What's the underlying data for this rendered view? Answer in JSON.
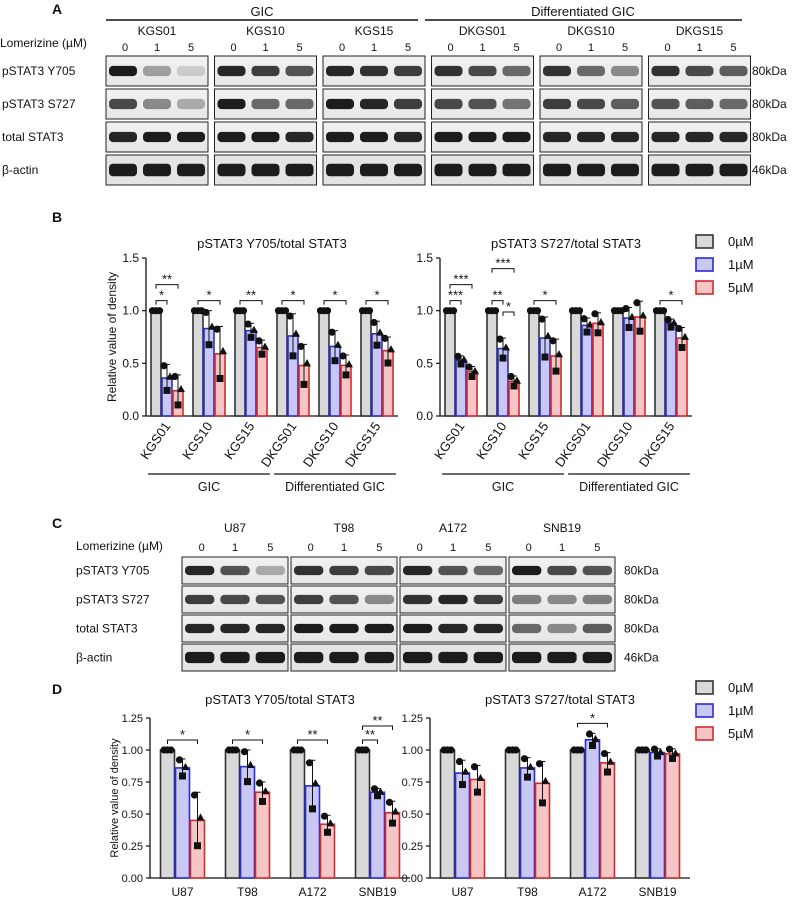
{
  "panel_labels": [
    "A",
    "B",
    "C",
    "D"
  ],
  "panel_a": {
    "groups": [
      "GIC",
      "Differentiated GIC"
    ],
    "treatment_label": "Lomerizine (µM)",
    "cell_lines": [
      "KGS01",
      "KGS10",
      "KGS15",
      "DKGS01",
      "DKGS10",
      "DKGS15"
    ],
    "doses": [
      "0",
      "1",
      "5"
    ],
    "rows": [
      {
        "label": "pSTAT3 Y705",
        "size": "80kDa"
      },
      {
        "label": "pSTAT3 S727",
        "size": "80kDa"
      },
      {
        "label": "total STAT3",
        "size": "80kDa"
      },
      {
        "label": "β-actin",
        "size": "46kDa"
      }
    ]
  },
  "panel_c": {
    "treatment_label": "Lomerizine (µM)",
    "cell_lines": [
      "U87",
      "T98",
      "A172",
      "SNB19"
    ],
    "doses": [
      "0",
      "1",
      "5"
    ],
    "rows": [
      {
        "label": "pSTAT3 Y705",
        "size": "80kDa"
      },
      {
        "label": "pSTAT3 S727",
        "size": "80kDa"
      },
      {
        "label": "total STAT3",
        "size": "80kDa"
      },
      {
        "label": "β-actin",
        "size": "46kDa"
      }
    ]
  },
  "legend": {
    "entries": [
      {
        "label": "0µM",
        "fill": "#d9d9d9",
        "stroke": "#333333"
      },
      {
        "label": "1µM",
        "fill": "#c8c8f2",
        "stroke": "#2b2bd6"
      },
      {
        "label": "5µM",
        "fill": "#f6c6c6",
        "stroke": "#d42a2a"
      }
    ]
  },
  "chart_data": [
    {
      "type": "bar",
      "title": "pSTAT3 Y705/total STAT3",
      "ylabel": "Relative value of density",
      "ylim": [
        0,
        1.5
      ],
      "yticks": [
        "0.0",
        "0.5",
        "1.0",
        "1.5"
      ],
      "categories": [
        "KGS01",
        "KGS10",
        "KGS15",
        "DKGS01",
        "DKGS10",
        "DKGS15"
      ],
      "category_groups": [
        {
          "label": "GIC",
          "span": [
            0,
            2
          ]
        },
        {
          "label": "Differentiated GIC",
          "span": [
            3,
            5
          ]
        }
      ],
      "series": [
        {
          "name": "0µM",
          "values": [
            1.0,
            1.0,
            1.0,
            1.0,
            1.0,
            1.0
          ],
          "errors": [
            0,
            0,
            0,
            0,
            0,
            0
          ]
        },
        {
          "name": "1µM",
          "values": [
            0.36,
            0.83,
            0.81,
            0.76,
            0.66,
            0.78
          ],
          "errors": [
            0.13,
            0.17,
            0.07,
            0.21,
            0.15,
            0.12
          ]
        },
        {
          "name": "5µM",
          "values": [
            0.24,
            0.59,
            0.65,
            0.48,
            0.48,
            0.62
          ],
          "errors": [
            0.15,
            0.26,
            0.07,
            0.2,
            0.1,
            0.13
          ]
        }
      ],
      "significance": [
        {
          "category": 0,
          "from": 0,
          "to": 1,
          "label": "*"
        },
        {
          "category": 0,
          "from": 0,
          "to": 2,
          "label": "**"
        },
        {
          "category": 1,
          "from": 0,
          "to": 2,
          "label": "*"
        },
        {
          "category": 2,
          "from": 0,
          "to": 2,
          "label": "**"
        },
        {
          "category": 3,
          "from": 0,
          "to": 2,
          "label": "*"
        },
        {
          "category": 4,
          "from": 0,
          "to": 2,
          "label": "*"
        },
        {
          "category": 5,
          "from": 0,
          "to": 2,
          "label": "*"
        }
      ]
    },
    {
      "type": "bar",
      "title": "pSTAT3 S727/total STAT3",
      "ylabel": "",
      "ylim": [
        0,
        1.5
      ],
      "yticks": [
        "0.0",
        "0.5",
        "1.0",
        "1.5"
      ],
      "categories": [
        "KGS01",
        "KGS10",
        "KGS15",
        "DKGS01",
        "DKGS10",
        "DKGS15"
      ],
      "category_groups": [
        {
          "label": "GIC",
          "span": [
            0,
            2
          ]
        },
        {
          "label": "Differentiated GIC",
          "span": [
            3,
            5
          ]
        }
      ],
      "series": [
        {
          "name": "0µM",
          "values": [
            1.0,
            1.0,
            1.0,
            1.0,
            1.0,
            1.0
          ],
          "errors": [
            0,
            0,
            0,
            0,
            0,
            0
          ]
        },
        {
          "name": "1µM",
          "values": [
            0.53,
            0.64,
            0.74,
            0.86,
            0.93,
            0.88
          ],
          "errors": [
            0.04,
            0.1,
            0.2,
            0.07,
            0.1,
            0.04
          ]
        },
        {
          "name": "5µM",
          "values": [
            0.42,
            0.33,
            0.57,
            0.88,
            0.94,
            0.74
          ],
          "errors": [
            0.05,
            0.05,
            0.16,
            0.1,
            0.15,
            0.1
          ]
        }
      ],
      "significance": [
        {
          "category": 0,
          "from": 0,
          "to": 1,
          "label": "***"
        },
        {
          "category": 0,
          "from": 0,
          "to": 2,
          "label": "***"
        },
        {
          "category": 1,
          "from": 0,
          "to": 1,
          "label": "**"
        },
        {
          "category": 1,
          "from": 1,
          "to": 2,
          "label": "*"
        },
        {
          "category": 1,
          "from": 0,
          "to": 2,
          "label": "***"
        },
        {
          "category": 2,
          "from": 0,
          "to": 2,
          "label": "*"
        },
        {
          "category": 5,
          "from": 0,
          "to": 2,
          "label": "*"
        }
      ]
    },
    {
      "type": "bar",
      "title": "pSTAT3 Y705/total STAT3",
      "ylabel": "Relative value of density",
      "ylim": [
        0,
        1.25
      ],
      "yticks": [
        "0.00",
        "0.25",
        "0.50",
        "0.75",
        "1.00",
        "1.25"
      ],
      "categories": [
        "U87",
        "T98",
        "A172",
        "SNB19"
      ],
      "series": [
        {
          "name": "0µM",
          "values": [
            1.0,
            1.0,
            1.0,
            1.0
          ],
          "errors": [
            0,
            0,
            0,
            0
          ]
        },
        {
          "name": "1µM",
          "values": [
            0.86,
            0.87,
            0.72,
            0.67
          ],
          "errors": [
            0.07,
            0.13,
            0.2,
            0.03
          ]
        },
        {
          "name": "5µM",
          "values": [
            0.45,
            0.67,
            0.42,
            0.51
          ],
          "errors": [
            0.22,
            0.08,
            0.07,
            0.09
          ]
        }
      ],
      "significance": [
        {
          "category": 0,
          "from": 0,
          "to": 2,
          "label": "*"
        },
        {
          "category": 1,
          "from": 0,
          "to": 2,
          "label": "*"
        },
        {
          "category": 2,
          "from": 0,
          "to": 2,
          "label": "**"
        },
        {
          "category": 3,
          "from": 0,
          "to": 1,
          "label": "**"
        },
        {
          "category": 3,
          "from": 0,
          "to": 2,
          "label": "**"
        }
      ]
    },
    {
      "type": "bar",
      "title": "pSTAT3 S727/total STAT3",
      "ylabel": "",
      "ylim": [
        0,
        1.25
      ],
      "yticks": [
        "0.00",
        "0.25",
        "0.50",
        "0.75",
        "1.00",
        "1.25"
      ],
      "categories": [
        "U87",
        "T98",
        "A172",
        "SNB19"
      ],
      "series": [
        {
          "name": "0µM",
          "values": [
            1.0,
            1.0,
            1.0,
            1.0
          ],
          "errors": [
            0,
            0,
            0,
            0
          ]
        },
        {
          "name": "1µM",
          "values": [
            0.82,
            0.86,
            1.08,
            0.98
          ],
          "errors": [
            0.1,
            0.08,
            0.05,
            0.03
          ]
        },
        {
          "name": "5µM",
          "values": [
            0.77,
            0.74,
            0.9,
            0.97
          ],
          "errors": [
            0.11,
            0.17,
            0.08,
            0.04
          ]
        }
      ],
      "significance": [
        {
          "category": 2,
          "from": 0,
          "to": 2,
          "label": "*"
        }
      ]
    }
  ]
}
